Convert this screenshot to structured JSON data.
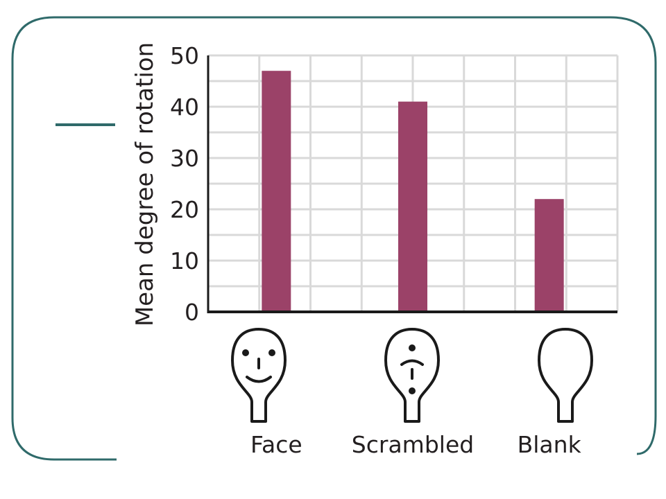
{
  "colors": {
    "frame": "#2f6a6a",
    "bar": "#9b4268",
    "grid": "#d9d9d9",
    "axis": "#1a1a1a",
    "text": "#231f20"
  },
  "chart_data": {
    "type": "bar",
    "categories": [
      "Face",
      "Scrambled",
      "Blank"
    ],
    "values": [
      47,
      41,
      22
    ],
    "ylabel": "Mean degree of rotation",
    "xlabel": "",
    "title": "",
    "ylim": [
      0,
      50
    ],
    "yticks": [
      0,
      10,
      20,
      30,
      40,
      50
    ],
    "grid": true,
    "category_icons": [
      "face-head-icon",
      "scrambled-head-icon",
      "blank-head-icon"
    ]
  }
}
